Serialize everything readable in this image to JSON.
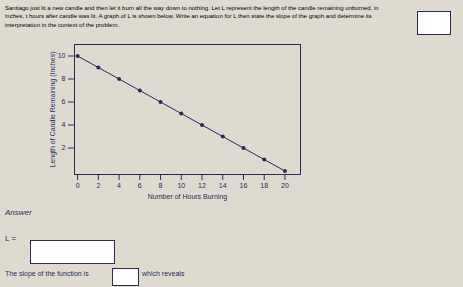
{
  "chart_data": {
    "type": "line",
    "marker": "circle",
    "title": "Santiago just lit a new candle and then let it burn all the way down to nothing. Let L represent the length of the candle remaining unburned, in\ninches, t hours after candle was lit. A graph of L is shown below. Write an equation for L then state the slope of the graph and determine its\ninterpretation in the context of the problem.",
    "xlabel": "Number of Hours Burning",
    "ylabel": "Length of Candle Remaining (Inches)",
    "x": [
      0,
      2,
      4,
      6,
      8,
      10,
      12,
      14,
      16,
      18,
      20
    ],
    "values": [
      10,
      9,
      8,
      7,
      6,
      5,
      4,
      3,
      2,
      1,
      0
    ],
    "color": "#2a2a5a",
    "xlim": [
      -0.3,
      21.5
    ],
    "ylim": [
      -0.3,
      11.0
    ],
    "xticks": [
      0,
      2,
      4,
      6,
      8,
      10,
      12,
      14,
      16,
      18,
      20
    ],
    "yticks": [
      2,
      4,
      6,
      8,
      10
    ],
    "annotations": [
      "Answer",
      "L =",
      "The slope of the function is",
      "which reveals"
    ]
  }
}
